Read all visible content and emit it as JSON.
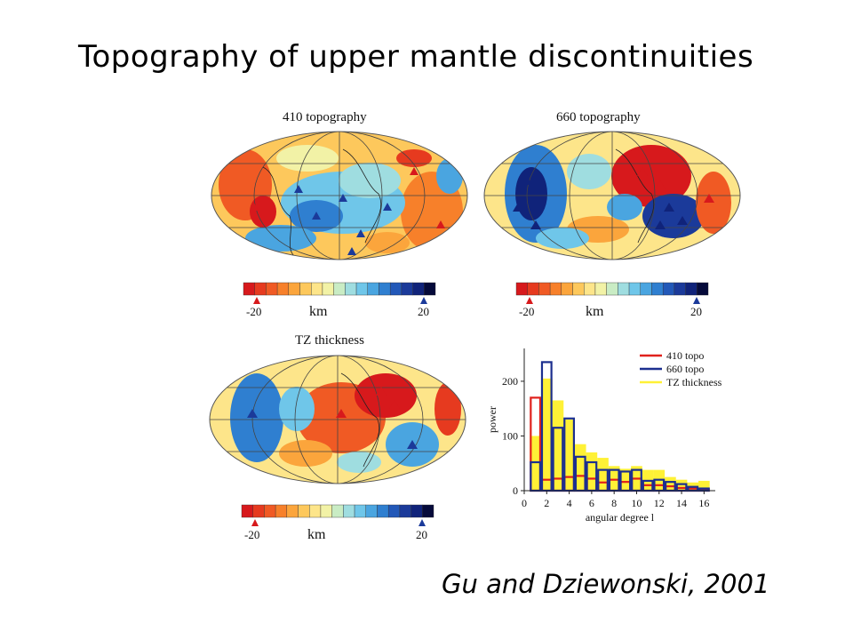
{
  "slide": {
    "title": "Topography of upper mantle discontinuities",
    "citation": "Gu and Dziewonski, 2001"
  },
  "maps": [
    {
      "title": "410 topography",
      "colorbar_min": "-20",
      "colorbar_unit": "km",
      "colorbar_max": "20"
    },
    {
      "title": "660 topography",
      "colorbar_min": "-20",
      "colorbar_unit": "km",
      "colorbar_max": "20"
    },
    {
      "title": "TZ thickness",
      "colorbar_min": "-20",
      "colorbar_unit": "km",
      "colorbar_max": "20"
    }
  ],
  "colors": {
    "colorbar": [
      "#d7191c",
      "#e63a1f",
      "#f05a24",
      "#f7802a",
      "#fba53c",
      "#fdc85c",
      "#fde58a",
      "#f2f2a6",
      "#c9ecc4",
      "#9fdde0",
      "#6fc6e9",
      "#4aa5e0",
      "#2f7fd0",
      "#2258b8",
      "#1b3a9a",
      "#10237a",
      "#050a3a"
    ],
    "series_410": "#e0211c",
    "series_660": "#1c2f8f",
    "series_tz": "#fff136"
  },
  "chart_data": {
    "type": "bar",
    "xlabel": "angular degree l",
    "ylabel": "power",
    "ylim": [
      0,
      260
    ],
    "yticks": [
      0,
      100,
      200
    ],
    "xticks": [
      0,
      2,
      4,
      6,
      8,
      10,
      12,
      14,
      16
    ],
    "x": [
      1,
      2,
      3,
      4,
      5,
      6,
      7,
      8,
      9,
      10,
      11,
      12,
      13,
      14,
      15,
      16
    ],
    "series": [
      {
        "name": "410 topo",
        "values": [
          170,
          20,
          22,
          25,
          27,
          22,
          15,
          20,
          16,
          22,
          10,
          10,
          8,
          5,
          4,
          3
        ]
      },
      {
        "name": "660 topo",
        "values": [
          52,
          235,
          115,
          132,
          62,
          52,
          38,
          38,
          35,
          38,
          18,
          20,
          16,
          12,
          7,
          4
        ]
      },
      {
        "name": "TZ thickness",
        "values": [
          100,
          205,
          165,
          130,
          85,
          70,
          60,
          45,
          40,
          45,
          38,
          38,
          25,
          20,
          15,
          18
        ]
      }
    ]
  }
}
